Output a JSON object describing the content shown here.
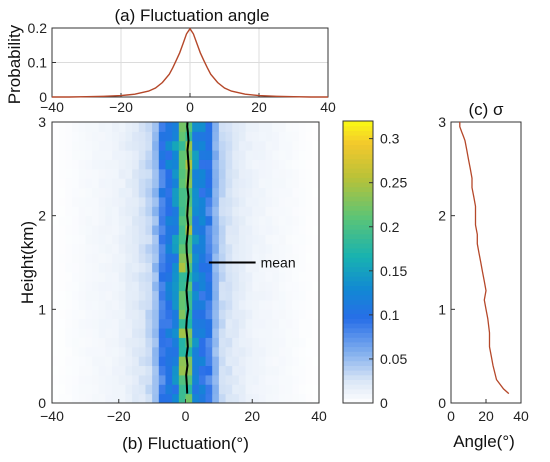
{
  "chart_data": [
    {
      "id": "a",
      "type": "line",
      "title": "(a) Fluctuation angle",
      "xlabel": "",
      "ylabel": "Probability",
      "xlim": [
        -40,
        40
      ],
      "ylim": [
        0,
        0.2
      ],
      "xticks": [
        -40,
        -20,
        0,
        20,
        40
      ],
      "yticks": [
        0,
        0.1,
        0.2
      ],
      "grid": true,
      "line_color": "#b5482a",
      "x": [
        -40,
        -35,
        -30,
        -25,
        -20,
        -16,
        -12,
        -10,
        -8,
        -6,
        -5,
        -4,
        -3,
        -2,
        -1,
        0,
        1,
        2,
        3,
        4,
        5,
        6,
        8,
        10,
        12,
        16,
        20,
        25,
        30,
        35,
        40
      ],
      "y": [
        0.0,
        0.0,
        0.001,
        0.002,
        0.004,
        0.008,
        0.017,
        0.026,
        0.042,
        0.066,
        0.085,
        0.106,
        0.128,
        0.155,
        0.183,
        0.198,
        0.183,
        0.155,
        0.128,
        0.106,
        0.085,
        0.066,
        0.042,
        0.026,
        0.017,
        0.008,
        0.004,
        0.002,
        0.001,
        0.0,
        0.0
      ]
    },
    {
      "id": "b",
      "type": "heatmap",
      "title": "",
      "xlabel": "(b) Fluctuation(°)",
      "ylabel": "Height(km)",
      "xlim": [
        -40,
        40
      ],
      "ylim": [
        0,
        3
      ],
      "xticks": [
        -40,
        -20,
        0,
        20,
        40
      ],
      "yticks": [
        0,
        1,
        2,
        3
      ],
      "colorbar": {
        "min": 0,
        "max": 0.32,
        "ticks": [
          0,
          0.05,
          0.1,
          0.15,
          0.2,
          0.25,
          0.3
        ],
        "colormap": "parula-white"
      },
      "annotation": "mean",
      "mean_color": "#000000",
      "column_profile": {
        "x": [
          -20,
          -16,
          -12,
          -10,
          -8,
          -6,
          -4,
          -2,
          0,
          2,
          4,
          6,
          8,
          10,
          12,
          16,
          20
        ],
        "density": [
          0.012,
          0.02,
          0.03,
          0.04,
          0.07,
          0.12,
          0.11,
          0.16,
          0.29,
          0.16,
          0.11,
          0.12,
          0.07,
          0.04,
          0.03,
          0.02,
          0.012
        ]
      },
      "mean_x": [
        0.5,
        0.4,
        0.2,
        0.6,
        0.3,
        0.7,
        0.5,
        0.2,
        0.4,
        0.8,
        0.5,
        0.3,
        0.6,
        0.9,
        0.7,
        0.4,
        0.3,
        0.6,
        0.8,
        0.5,
        0.7,
        0.9,
        0.6,
        0.8,
        1.0,
        0.8,
        0.6,
        0.9,
        0.7,
        0.5,
        0.6
      ],
      "mean_y": [
        0.1,
        0.2,
        0.3,
        0.4,
        0.5,
        0.6,
        0.7,
        0.8,
        0.9,
        1.0,
        1.1,
        1.2,
        1.3,
        1.4,
        1.5,
        1.6,
        1.7,
        1.8,
        1.9,
        2.0,
        2.1,
        2.2,
        2.3,
        2.4,
        2.5,
        2.6,
        2.7,
        2.8,
        2.9,
        2.95,
        3.0
      ]
    },
    {
      "id": "c",
      "type": "line",
      "title": "(c) σ",
      "xlabel": "Angle(°)",
      "ylabel": "",
      "xlim": [
        0,
        40
      ],
      "ylim": [
        0,
        3
      ],
      "xticks": [
        0,
        20,
        40
      ],
      "yticks": [
        0,
        1,
        2,
        3
      ],
      "line_color": "#b5482a",
      "x": [
        33,
        30,
        26,
        24,
        23,
        22,
        22,
        21,
        20,
        19,
        20,
        19,
        18,
        17,
        16,
        15,
        15,
        14,
        14,
        14,
        13,
        12,
        12,
        11,
        10,
        9,
        8,
        7,
        6,
        5,
        5
      ],
      "y": [
        0.1,
        0.15,
        0.25,
        0.4,
        0.5,
        0.6,
        0.75,
        0.9,
        1.0,
        1.1,
        1.2,
        1.3,
        1.4,
        1.5,
        1.6,
        1.7,
        1.8,
        1.9,
        2.0,
        2.1,
        2.2,
        2.3,
        2.4,
        2.5,
        2.6,
        2.7,
        2.8,
        2.85,
        2.9,
        2.95,
        3.0
      ]
    }
  ]
}
